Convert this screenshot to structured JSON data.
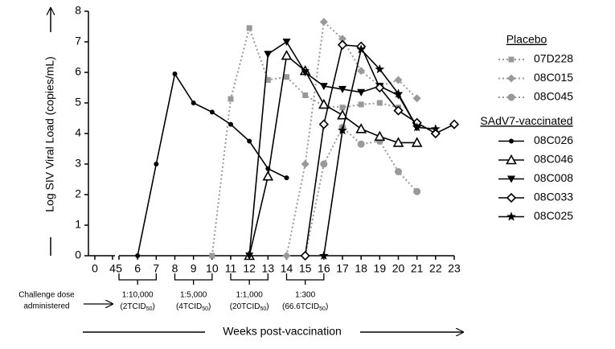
{
  "chart_data": {
    "type": "line",
    "ylabel": "Log SIV Viral Load (copies/mL)",
    "xlabel": "Weeks post-vaccination",
    "xlim": [
      0,
      23
    ],
    "xbreak": [
      4,
      5
    ],
    "xticks": [
      0,
      4,
      5,
      6,
      7,
      8,
      9,
      10,
      11,
      12,
      13,
      14,
      15,
      16,
      17,
      18,
      19,
      20,
      21,
      22,
      23
    ],
    "ylim": [
      0,
      8
    ],
    "yticks": [
      0,
      1,
      2,
      3,
      4,
      5,
      6,
      7,
      8
    ],
    "challenge": {
      "label": [
        "Challenge dose",
        "administered"
      ],
      "doses": [
        {
          "span": [
            5,
            7
          ],
          "ratio": "1:10,000",
          "text": "(2TCID",
          "sub": "50",
          "tail": ")"
        },
        {
          "span": [
            8,
            10
          ],
          "ratio": "1:5,000",
          "text": "(4TCID",
          "sub": "50",
          "tail": ")"
        },
        {
          "span": [
            11,
            13
          ],
          "ratio": "1:1,000",
          "text": "(20TCID",
          "sub": "50",
          "tail": ")"
        },
        {
          "span": [
            14,
            16
          ],
          "ratio": "1:300",
          "text": "(66.6TCID",
          "sub": "50",
          "tail": ")"
        }
      ]
    },
    "groups": [
      {
        "title": "Placebo",
        "series": [
          {
            "name": "07D228",
            "color": "#999999",
            "marker": "square",
            "line_style": "dotted",
            "x": [
              10,
              11,
              12,
              13,
              14,
              15,
              16,
              17,
              18,
              19,
              20
            ],
            "values": [
              0,
              5.13,
              7.45,
              5.75,
              5.85,
              5.25,
              4.9,
              4.85,
              4.95,
              5.0,
              4.85
            ]
          },
          {
            "name": "08C015",
            "color": "#999999",
            "marker": "diamond",
            "line_style": "dotted",
            "x": [
              14,
              15,
              16,
              17,
              18,
              19,
              20,
              21
            ],
            "values": [
              0,
              3.0,
              7.65,
              7.1,
              6.05,
              5.55,
              5.75,
              5.15
            ]
          },
          {
            "name": "08C045",
            "color": "#999999",
            "marker": "circle",
            "line_style": "dotted",
            "x": [
              15,
              16,
              17,
              18,
              19,
              20,
              21
            ],
            "values": [
              0,
              3.0,
              4.2,
              3.65,
              3.75,
              2.75,
              2.1
            ]
          }
        ]
      },
      {
        "title": "SAdV7-vaccinated",
        "series": [
          {
            "name": "08C026",
            "color": "#000000",
            "marker": "small-circle",
            "line_style": "solid",
            "x": [
              6,
              7,
              8,
              9,
              10,
              11,
              12,
              13,
              14
            ],
            "values": [
              0,
              3.0,
              5.95,
              5.0,
              4.7,
              4.3,
              3.75,
              2.85,
              2.55
            ]
          },
          {
            "name": "08C046",
            "color": "#000000",
            "marker": "open-triangle",
            "line_style": "solid",
            "x": [
              12,
              13,
              14,
              15,
              16,
              17,
              18,
              19,
              20,
              21
            ],
            "values": [
              0,
              2.6,
              6.55,
              6.05,
              4.95,
              4.6,
              4.15,
              3.9,
              3.7,
              3.7
            ]
          },
          {
            "name": "08C008",
            "color": "#000000",
            "marker": "down-triangle",
            "line_style": "solid",
            "x": [
              12,
              13,
              14,
              15,
              16,
              17,
              18,
              19,
              20,
              21
            ],
            "values": [
              0,
              6.6,
              7.0,
              6.0,
              5.55,
              5.45,
              5.35,
              5.55,
              5.25,
              4.2
            ]
          },
          {
            "name": "08C033",
            "color": "#000000",
            "marker": "open-diamond",
            "line_style": "solid",
            "x": [
              15,
              16,
              17,
              18,
              19,
              20,
              21,
              22,
              23
            ],
            "values": [
              0,
              4.3,
              6.9,
              6.85,
              5.5,
              4.75,
              4.35,
              4.0,
              4.3
            ]
          },
          {
            "name": "08C025",
            "color": "#000000",
            "marker": "star",
            "line_style": "solid",
            "x": [
              16,
              17,
              18,
              19,
              20,
              21,
              22
            ],
            "values": [
              0,
              4.1,
              6.75,
              6.1,
              5.3,
              4.2,
              4.15
            ]
          }
        ]
      }
    ]
  }
}
